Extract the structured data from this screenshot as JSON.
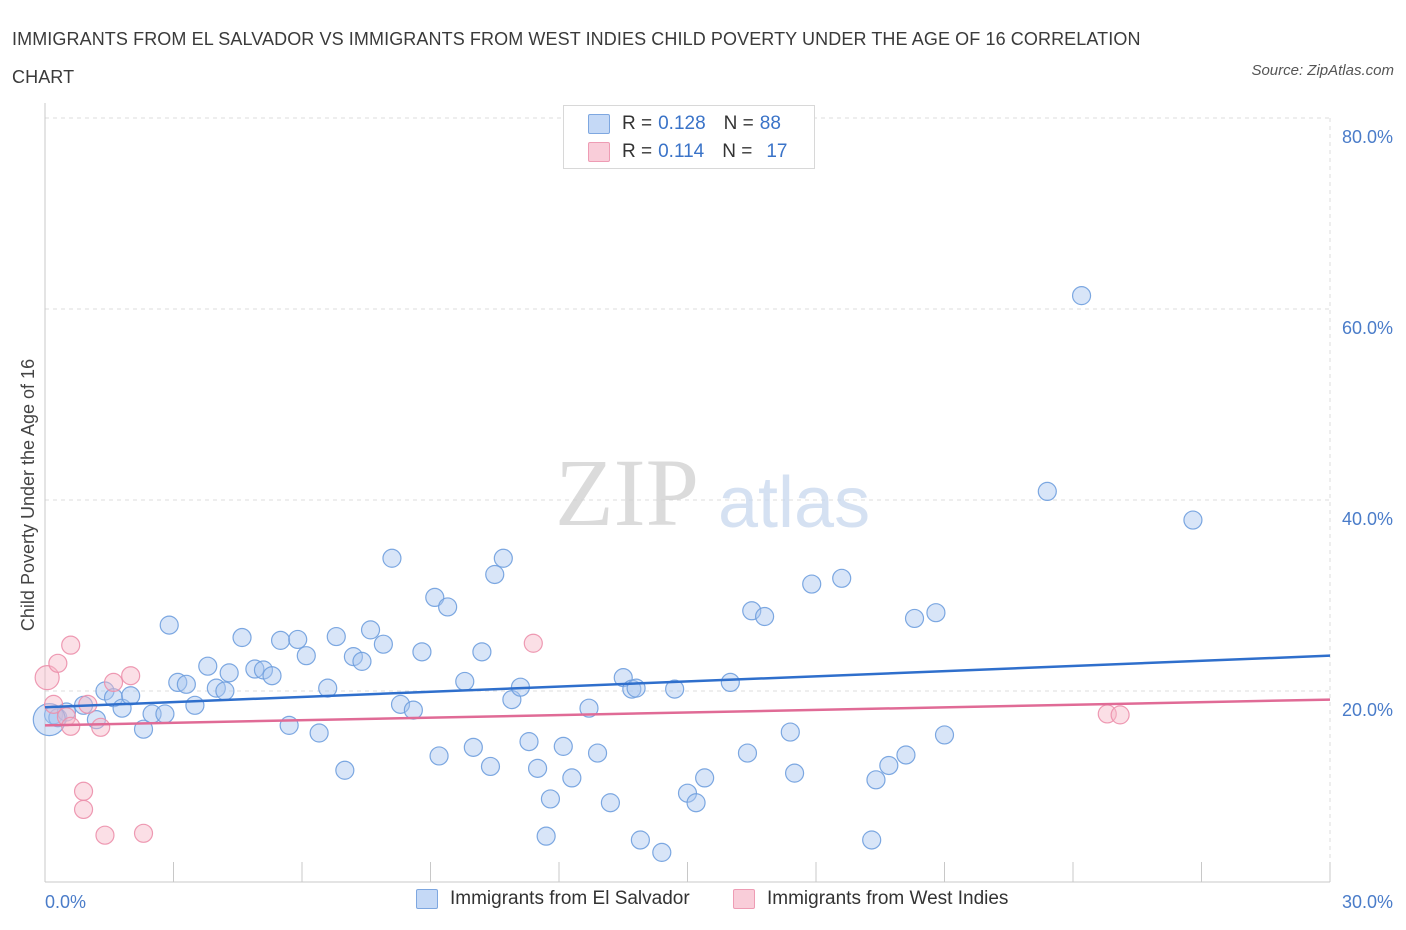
{
  "title": "IMMIGRANTS FROM EL SALVADOR VS IMMIGRANTS FROM WEST INDIES CHILD POVERTY UNDER THE AGE OF 16 CORRELATION CHART",
  "source": "Source: ZipAtlas.com",
  "watermark": {
    "zip": "ZIP",
    "atlas": "atlas"
  },
  "legend_top": [
    {
      "r_label": "R = ",
      "r_value": "0.128",
      "n_label": "N = ",
      "n_value": "88"
    },
    {
      "r_label": "R = ",
      "r_value": "0.114",
      "n_label": "N = ",
      "n_value": "17"
    }
  ],
  "colors": {
    "series1_fill": "#a9c6f0",
    "series1_stroke": "#6f9ede",
    "series1_line": "#2f6fcc",
    "series2_fill": "#f6b7c8",
    "series2_stroke": "#ec8fab",
    "series2_line": "#e06b96",
    "grid": "#dddddd",
    "tick_text": "#4a7cc9"
  },
  "chart_data": {
    "type": "scatter",
    "title": "IMMIGRANTS FROM EL SALVADOR VS IMMIGRANTS FROM WEST INDIES CHILD POVERTY UNDER THE AGE OF 16 CORRELATION CHART",
    "xlabel": "",
    "ylabel": "Child Poverty Under the Age of 16",
    "xlim": [
      0,
      30
    ],
    "ylim": [
      0,
      80
    ],
    "x_tick_labels": [
      "0.0%",
      "30.0%"
    ],
    "y_ticks": [
      20,
      40,
      60,
      80
    ],
    "y_tick_labels": [
      "20.0%",
      "40.0%",
      "60.0%",
      "80.0%"
    ],
    "grid": true,
    "legend_position": "top-center",
    "series": [
      {
        "name": "Immigrants from El Salvador",
        "R": 0.128,
        "N": 88,
        "trend": [
          [
            0,
            18.3
          ],
          [
            30,
            23.7
          ]
        ],
        "points": [
          [
            0.2,
            17.5
          ],
          [
            0.3,
            17.2
          ],
          [
            0.5,
            17.8
          ],
          [
            0.9,
            18.5
          ],
          [
            1.2,
            17.0
          ],
          [
            1.4,
            20.0
          ],
          [
            1.6,
            19.3
          ],
          [
            1.8,
            18.2
          ],
          [
            2.0,
            19.5
          ],
          [
            2.3,
            16.0
          ],
          [
            2.5,
            17.6
          ],
          [
            2.8,
            17.6
          ],
          [
            2.9,
            26.9
          ],
          [
            3.1,
            20.9
          ],
          [
            3.3,
            20.7
          ],
          [
            3.5,
            18.5
          ],
          [
            3.8,
            22.6
          ],
          [
            4.0,
            20.3
          ],
          [
            4.2,
            20.0
          ],
          [
            4.3,
            21.9
          ],
          [
            4.6,
            25.6
          ],
          [
            4.9,
            22.3
          ],
          [
            5.1,
            22.2
          ],
          [
            5.3,
            21.6
          ],
          [
            5.5,
            25.3
          ],
          [
            5.7,
            16.4
          ],
          [
            5.9,
            25.4
          ],
          [
            6.1,
            23.7
          ],
          [
            6.4,
            15.6
          ],
          [
            6.6,
            20.3
          ],
          [
            6.8,
            25.7
          ],
          [
            7.0,
            11.7
          ],
          [
            7.2,
            23.6
          ],
          [
            7.4,
            23.1
          ],
          [
            7.6,
            26.4
          ],
          [
            7.9,
            24.9
          ],
          [
            8.1,
            33.9
          ],
          [
            8.3,
            18.6
          ],
          [
            8.6,
            18.0
          ],
          [
            8.8,
            24.1
          ],
          [
            9.1,
            29.8
          ],
          [
            9.2,
            13.2
          ],
          [
            9.4,
            28.8
          ],
          [
            9.8,
            21.0
          ],
          [
            10.0,
            14.1
          ],
          [
            10.2,
            24.1
          ],
          [
            10.4,
            12.1
          ],
          [
            10.5,
            32.2
          ],
          [
            10.7,
            33.9
          ],
          [
            10.9,
            19.1
          ],
          [
            11.1,
            20.4
          ],
          [
            11.3,
            14.7
          ],
          [
            11.5,
            11.9
          ],
          [
            11.7,
            4.8
          ],
          [
            11.8,
            8.7
          ],
          [
            12.1,
            14.2
          ],
          [
            12.3,
            10.9
          ],
          [
            12.7,
            18.2
          ],
          [
            12.9,
            13.5
          ],
          [
            13.2,
            8.3
          ],
          [
            13.5,
            21.4
          ],
          [
            13.7,
            20.2
          ],
          [
            13.8,
            20.3
          ],
          [
            13.9,
            4.4
          ],
          [
            14.4,
            3.1
          ],
          [
            14.7,
            20.2
          ],
          [
            15.0,
            9.3
          ],
          [
            15.2,
            8.3
          ],
          [
            15.4,
            10.9
          ],
          [
            16.0,
            20.9
          ],
          [
            16.4,
            13.5
          ],
          [
            16.5,
            28.4
          ],
          [
            16.8,
            27.8
          ],
          [
            17.4,
            15.7
          ],
          [
            17.5,
            11.4
          ],
          [
            17.9,
            31.2
          ],
          [
            18.6,
            31.8
          ],
          [
            19.3,
            4.4
          ],
          [
            19.4,
            10.7
          ],
          [
            19.7,
            12.2
          ],
          [
            20.1,
            13.3
          ],
          [
            20.3,
            27.6
          ],
          [
            20.8,
            28.2
          ],
          [
            21.0,
            15.4
          ],
          [
            23.4,
            40.9
          ],
          [
            24.2,
            61.4
          ],
          [
            26.8,
            37.9
          ],
          [
            0.1,
            17.0
          ]
        ]
      },
      {
        "name": "Immigrants from West Indies",
        "R": 0.114,
        "N": 17,
        "trend": [
          [
            0,
            16.4
          ],
          [
            30,
            19.1
          ]
        ],
        "points": [
          [
            0.05,
            21.4
          ],
          [
            0.2,
            18.6
          ],
          [
            0.3,
            22.9
          ],
          [
            0.5,
            17.3
          ],
          [
            0.6,
            16.3
          ],
          [
            0.6,
            24.8
          ],
          [
            0.9,
            9.5
          ],
          [
            0.9,
            7.6
          ],
          [
            1.0,
            18.6
          ],
          [
            1.3,
            16.2
          ],
          [
            1.4,
            4.9
          ],
          [
            1.6,
            20.9
          ],
          [
            2.0,
            21.6
          ],
          [
            2.3,
            5.1
          ],
          [
            11.4,
            25.0
          ],
          [
            24.8,
            17.6
          ],
          [
            25.1,
            17.5
          ]
        ]
      }
    ]
  },
  "legend_bottom": [
    {
      "label": "Immigrants from El Salvador"
    },
    {
      "label": "Immigrants from West Indies"
    }
  ]
}
